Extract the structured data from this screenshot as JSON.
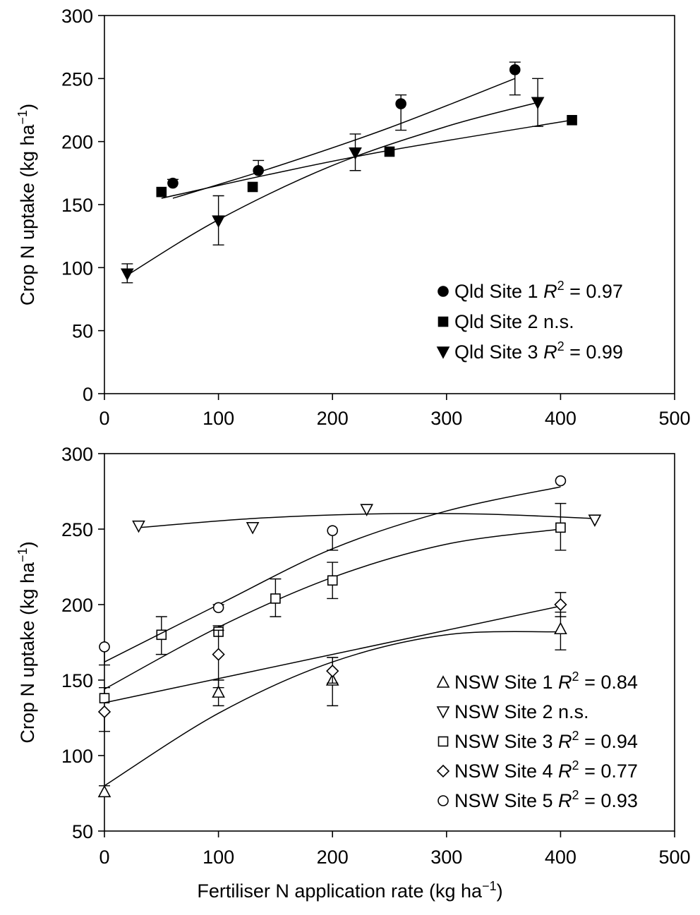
{
  "chart_data": [
    {
      "type": "scatter",
      "ylabel": "Crop N uptake (kg ha",
      "ylabel_sup": "−1",
      "ylabel_close": ")",
      "xlim": [
        0,
        500
      ],
      "ylim": [
        0,
        300
      ],
      "xticks": [
        0,
        100,
        200,
        300,
        400,
        500
      ],
      "yticks": [
        0,
        50,
        100,
        150,
        200,
        250,
        300
      ],
      "legend_position": "bottom-right",
      "series": [
        {
          "name": "Qld Site 1",
          "fit_label": "R",
          "fit_sup": "2",
          "fit_value": " = 0.97",
          "marker": "filled-circle",
          "x": [
            60,
            135,
            260,
            360
          ],
          "y": [
            167,
            177,
            230,
            257
          ],
          "err": [
            [
              null,
              170
            ],
            [
              null,
              185
            ],
            [
              209,
              237
            ],
            [
              237,
              263
            ]
          ],
          "fit": [
            [
              60,
              155
            ],
            [
              150,
              180
            ],
            [
              250,
              211
            ],
            [
              360,
              250
            ]
          ]
        },
        {
          "name": "Qld Site 2 n.s.",
          "fit_label": "",
          "fit_sup": "",
          "fit_value": "",
          "marker": "filled-square",
          "x": [
            50,
            130,
            250,
            410
          ],
          "y": [
            160,
            164,
            192,
            217
          ],
          "err": [],
          "fit": [
            [
              50,
              155
            ],
            [
              150,
              175
            ],
            [
              250,
              193
            ],
            [
              410,
              217
            ]
          ]
        },
        {
          "name": "Qld Site 3",
          "fit_label": "R",
          "fit_sup": "2",
          "fit_value": " = 0.99",
          "marker": "filled-triangle-down",
          "x": [
            20,
            100,
            220,
            380
          ],
          "y": [
            95,
            137,
            191,
            231
          ],
          "err": [
            [
              88,
              103
            ],
            [
              118,
              157
            ],
            [
              177,
              206
            ],
            [
              212,
              250
            ]
          ],
          "fit": [
            [
              20,
              94
            ],
            [
              100,
              138
            ],
            [
              200,
              181
            ],
            [
              300,
              212
            ],
            [
              380,
              231
            ]
          ]
        }
      ]
    },
    {
      "type": "scatter",
      "xlabel": "Fertiliser N application rate (kg ha",
      "xlabel_sup": "−1",
      "xlabel_close": ")",
      "ylabel": "Crop N uptake (kg ha",
      "ylabel_sup": "−1",
      "ylabel_close": ")",
      "xlim": [
        0,
        500
      ],
      "ylim": [
        50,
        300
      ],
      "xticks": [
        0,
        100,
        200,
        300,
        400,
        500
      ],
      "yticks": [
        50,
        100,
        150,
        200,
        250,
        300
      ],
      "legend_position": "bottom-right",
      "series": [
        {
          "name": "NSW Site 1",
          "fit_label": "R",
          "fit_sup": "2",
          "fit_value": " = 0.84",
          "marker": "open-triangle-up",
          "x": [
            0,
            100,
            200,
            400
          ],
          "y": [
            76,
            142,
            150,
            184
          ],
          "err": [
            [
              73,
              80
            ],
            [
              133,
              150
            ],
            [
              133,
              165
            ],
            [
              170,
              195
            ]
          ],
          "fit": [
            [
              0,
              80
            ],
            [
              100,
              128
            ],
            [
              200,
              162
            ],
            [
              300,
              180
            ],
            [
              400,
              182
            ]
          ]
        },
        {
          "name": "NSW Site 2 n.s.",
          "fit_label": "",
          "fit_sup": "",
          "fit_value": "",
          "marker": "open-triangle-down",
          "x": [
            30,
            130,
            230,
            430
          ],
          "y": [
            252,
            251,
            263,
            256
          ],
          "err": [],
          "fit": [
            [
              30,
              251
            ],
            [
              130,
              257
            ],
            [
              230,
              260
            ],
            [
              330,
              260
            ],
            [
              430,
              257
            ]
          ]
        },
        {
          "name": "NSW Site 3",
          "fit_label": "R",
          "fit_sup": "2",
          "fit_value": " = 0.94",
          "marker": "open-square",
          "x": [
            0,
            50,
            100,
            150,
            200,
            400
          ],
          "y": [
            138,
            180,
            182,
            204,
            216,
            251
          ],
          "err": [
            [
              null,
              145
            ],
            [
              167,
              192
            ],
            [
              null,
              186
            ],
            [
              192,
              217
            ],
            [
              204,
              228
            ],
            [
              236,
              267
            ]
          ],
          "fit": [
            [
              0,
              144
            ],
            [
              100,
              185
            ],
            [
              200,
              218
            ],
            [
              300,
              240
            ],
            [
              400,
              250
            ]
          ]
        },
        {
          "name": "NSW Site 4",
          "fit_label": "R",
          "fit_sup": "2",
          "fit_value": " = 0.77",
          "marker": "open-diamond",
          "x": [
            0,
            100,
            200,
            400
          ],
          "y": [
            129,
            167,
            156,
            200
          ],
          "err": [
            [
              116,
              null
            ],
            [
              145,
              183
            ],
            [
              148,
              165
            ],
            [
              192,
              208
            ]
          ],
          "fit": [
            [
              0,
              135
            ],
            [
              100,
              151
            ],
            [
              200,
              167
            ],
            [
              400,
              199
            ]
          ]
        },
        {
          "name": "NSW Site 5",
          "fit_label": "R",
          "fit_sup": "2",
          "fit_value": " = 0.93",
          "marker": "open-circle",
          "x": [
            0,
            100,
            200,
            400
          ],
          "y": [
            172,
            198,
            249,
            282
          ],
          "err": [
            [
              160,
              null
            ],
            [
              null,
              200
            ],
            [
              236,
              null
            ],
            [
              null,
              null
            ]
          ],
          "fit": [
            [
              0,
              162
            ],
            [
              100,
              200
            ],
            [
              200,
              237
            ],
            [
              300,
              262
            ],
            [
              400,
              278
            ]
          ]
        }
      ]
    }
  ]
}
